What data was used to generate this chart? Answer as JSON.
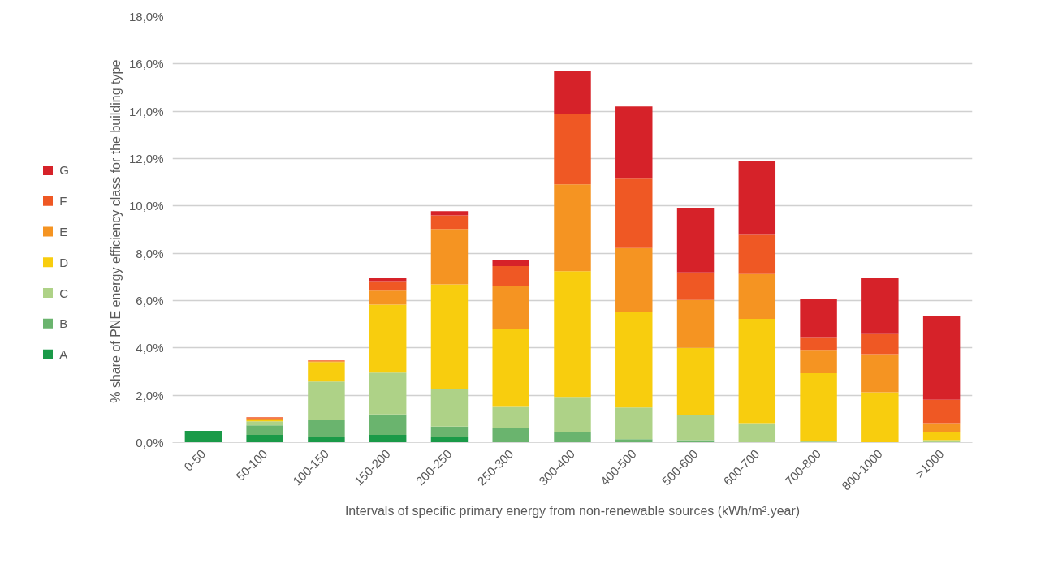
{
  "chart_data": {
    "type": "bar",
    "stacked": true,
    "xlabel": "Intervals of specific primary energy from non-renewable sources (kWh/m².year)",
    "ylabel": "% share of  PNE energy efficiency class for the building type",
    "categories": [
      "0-50",
      "50-100",
      "100-150",
      "150-200",
      "200-250",
      "250-300",
      "300-400",
      "400-500",
      "500-600",
      "600-700",
      "700-800",
      "800-1000",
      ">1000"
    ],
    "series": [
      {
        "name": "A",
        "color": "#1a9a48",
        "values": [
          0.5,
          0.33,
          0.26,
          0.33,
          0.25,
          0,
          0,
          0,
          0,
          0,
          0,
          0,
          0
        ]
      },
      {
        "name": "B",
        "color": "#6ab46e",
        "values": [
          0,
          0.4,
          0.72,
          0.86,
          0.43,
          0.6,
          0.46,
          0.15,
          0.1,
          0,
          0,
          0,
          0
        ]
      },
      {
        "name": "C",
        "color": "#aed287",
        "values": [
          0,
          0.17,
          1.6,
          1.77,
          1.57,
          0.94,
          1.47,
          1.33,
          1.07,
          0.82,
          0.05,
          0,
          0.1
        ]
      },
      {
        "name": "D",
        "color": "#f8cd0e",
        "values": [
          0,
          0.08,
          0.82,
          2.87,
          4.44,
          3.28,
          5.31,
          4.04,
          2.83,
          4.41,
          2.88,
          2.13,
          0.33
        ]
      },
      {
        "name": "E",
        "color": "#f59422",
        "values": [
          0,
          0.04,
          0.04,
          0.59,
          2.34,
          1.8,
          3.67,
          2.7,
          2.03,
          1.89,
          0.99,
          1.61,
          0.39
        ]
      },
      {
        "name": "F",
        "color": "#ef5824",
        "values": [
          0,
          0.05,
          0.03,
          0.4,
          0.57,
          0.84,
          2.96,
          2.97,
          1.16,
          1.69,
          0.54,
          0.85,
          0.99
        ]
      },
      {
        "name": "G",
        "color": "#d62229",
        "values": [
          0,
          0,
          0,
          0.14,
          0.18,
          0.26,
          1.84,
          3.01,
          2.74,
          3.09,
          1.62,
          2.38,
          3.53
        ]
      }
    ],
    "ylim": [
      0,
      18
    ],
    "yticks": [
      {
        "value": 0,
        "label": "0,0%"
      },
      {
        "value": 2,
        "label": "2,0%"
      },
      {
        "value": 4,
        "label": "4,0%"
      },
      {
        "value": 6,
        "label": "6,0%"
      },
      {
        "value": 8,
        "label": "8,0%"
      },
      {
        "value": 10,
        "label": "10,0%"
      },
      {
        "value": 12,
        "label": "12,0%"
      },
      {
        "value": 14,
        "label": "14,0%"
      },
      {
        "value": 16,
        "label": "16,0%"
      },
      {
        "value": 18,
        "label": "18,0%"
      }
    ],
    "grid": "y",
    "legend": "left"
  }
}
